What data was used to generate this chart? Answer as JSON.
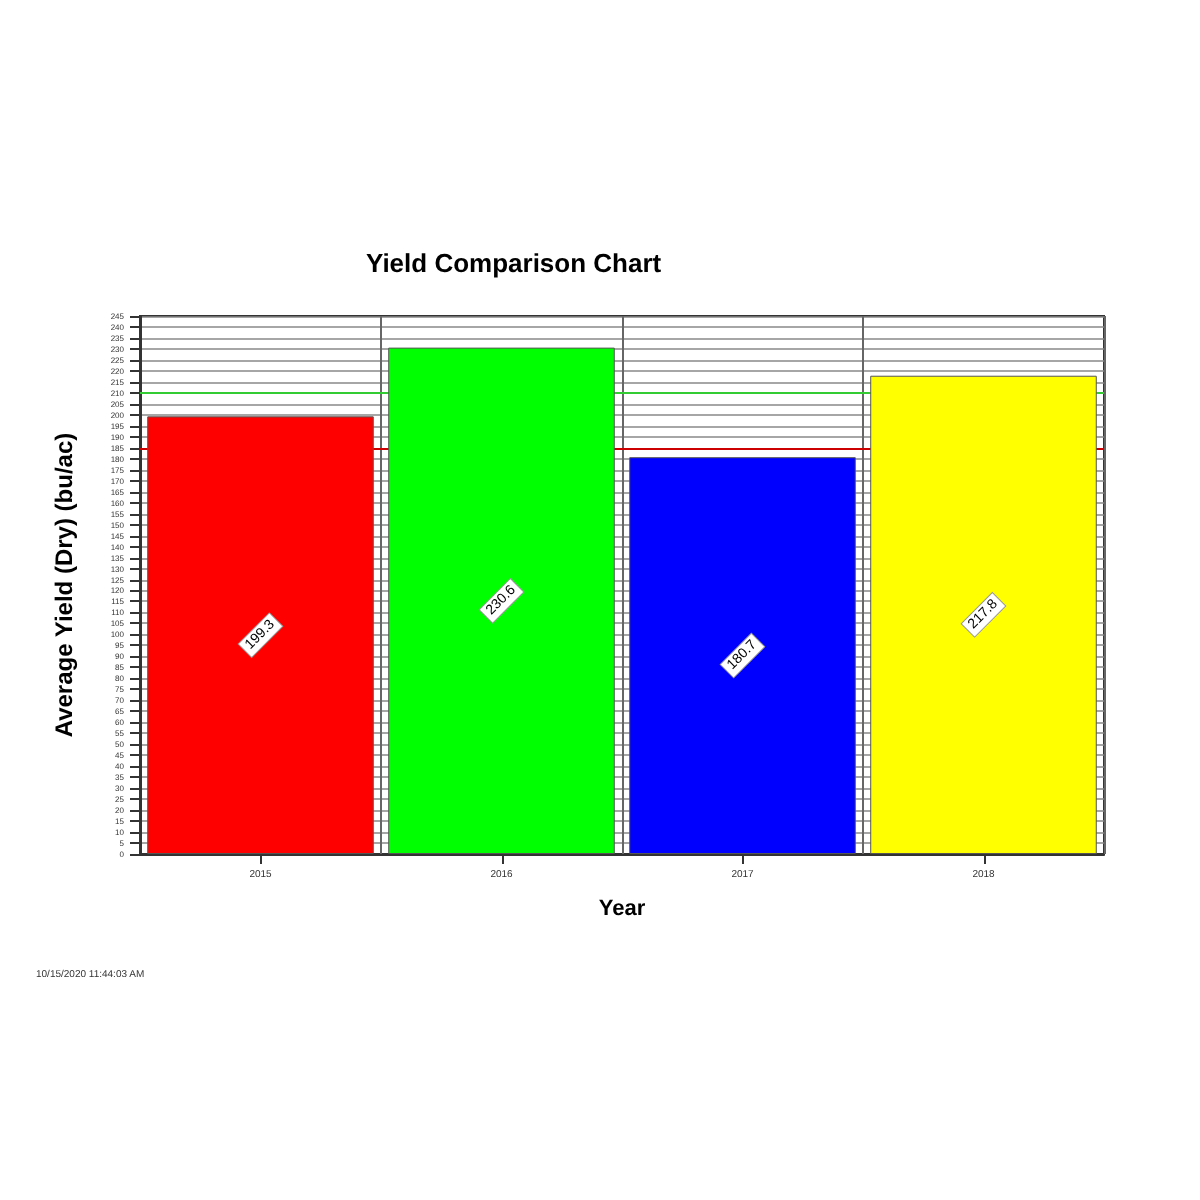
{
  "chart_data": {
    "type": "bar",
    "title": "Yield Comparison Chart",
    "xlabel": "Year",
    "ylabel": "Average Yield (Dry) (bu/ac)",
    "categories": [
      "2015",
      "2016",
      "2017",
      "2018"
    ],
    "values": [
      199.3,
      230.6,
      180.7,
      217.8
    ],
    "colors": [
      "#ff0000",
      "#00ff00",
      "#0000ff",
      "#ffff00"
    ],
    "data_labels": true,
    "ylim": [
      0,
      245
    ],
    "yticks": [
      0,
      5,
      10,
      15,
      20,
      25,
      30,
      35,
      40,
      45,
      50,
      55,
      60,
      65,
      70,
      75,
      80,
      85,
      90,
      95,
      100,
      105,
      110,
      115,
      120,
      125,
      130,
      135,
      140,
      145,
      150,
      155,
      160,
      165,
      170,
      175,
      180,
      185,
      190,
      195,
      200,
      205,
      210,
      215,
      220,
      225,
      230,
      235,
      240,
      245
    ],
    "ref_lines": [
      {
        "axis": "y",
        "value": 210,
        "color": "#33cc33"
      },
      {
        "axis": "y",
        "value": 185,
        "color": "#cc0000"
      }
    ],
    "grid": true,
    "annotations": [
      "10/15/2020 11:44:03 AM"
    ]
  }
}
